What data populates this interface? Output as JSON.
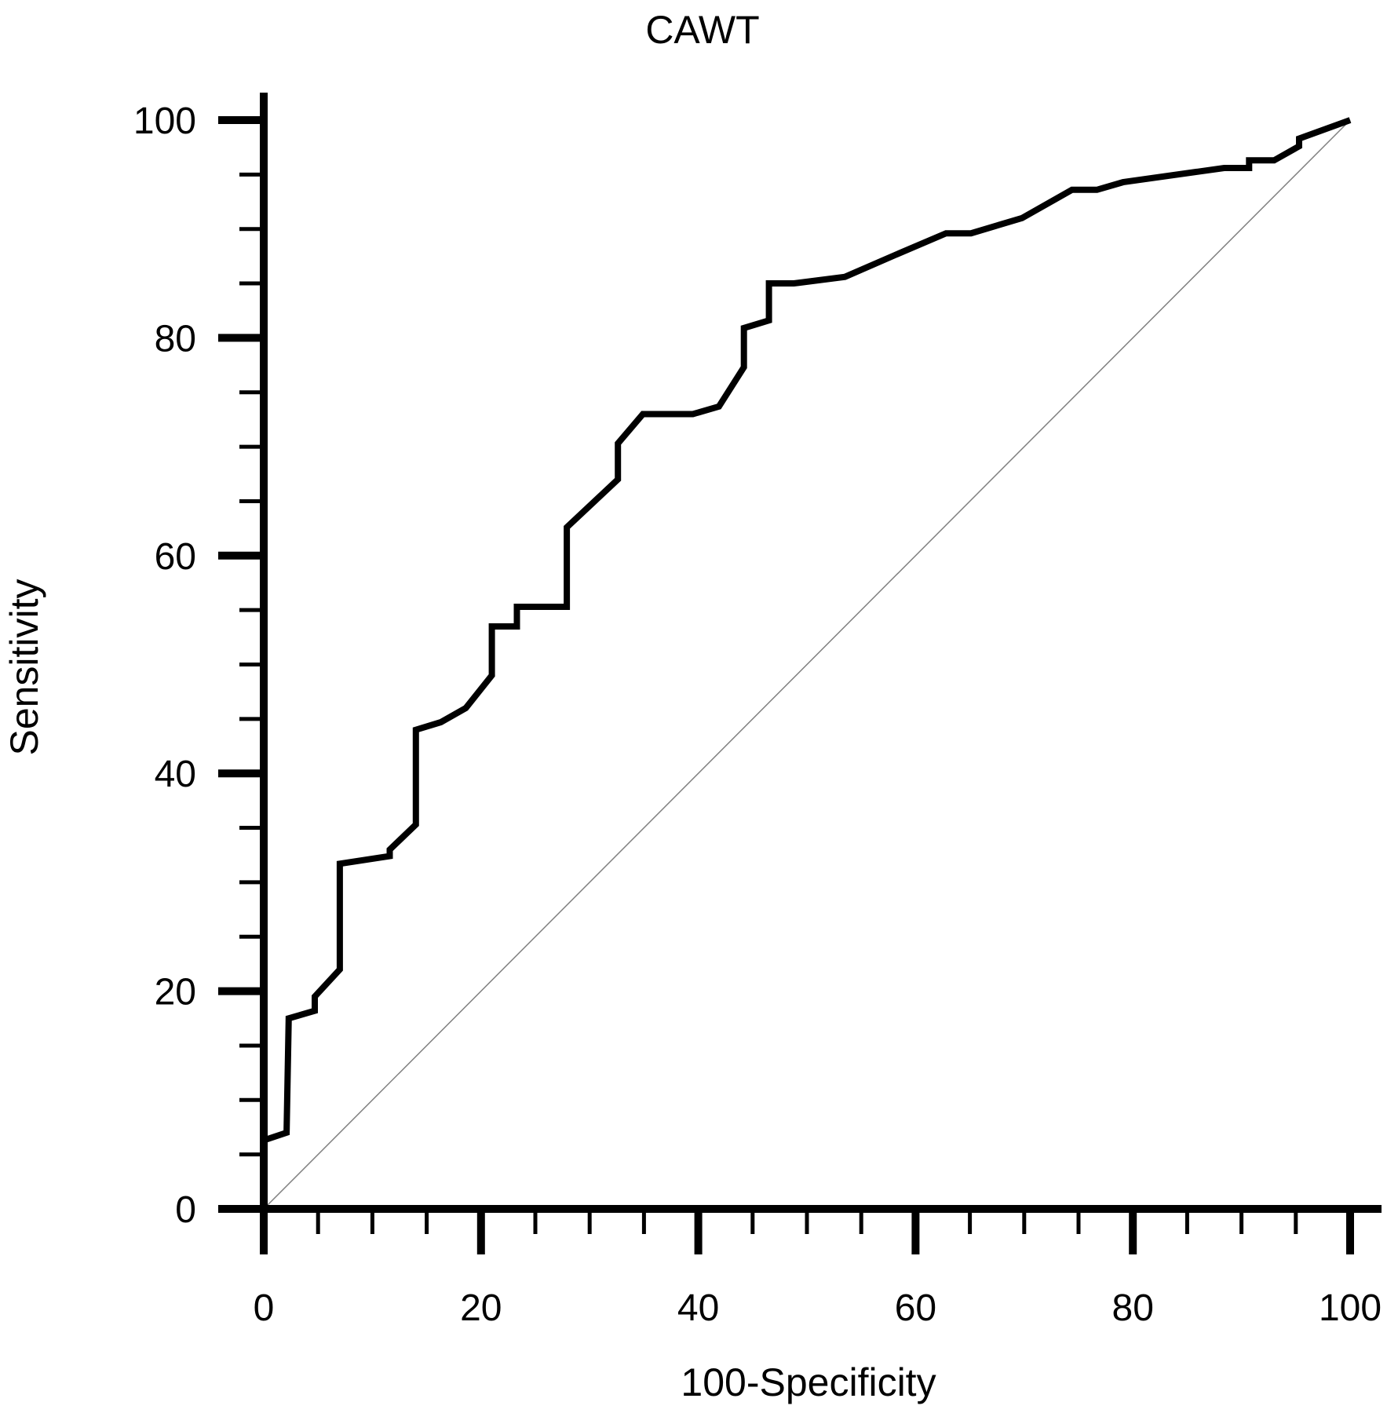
{
  "chart_data": {
    "type": "line",
    "title": "CAWT",
    "xlabel": "100-Specificity",
    "ylabel": "Sensitivity",
    "xlim": [
      0,
      100
    ],
    "ylim": [
      0,
      100
    ],
    "x_ticks": [
      "0",
      "20",
      "40",
      "60",
      "80",
      "100"
    ],
    "y_ticks": [
      "0",
      "20",
      "40",
      "60",
      "80",
      "100"
    ],
    "grid": false,
    "legend": "none",
    "series": [
      {
        "type": "roc-curve",
        "color": "#000000",
        "points": [
          [
            0,
            0
          ],
          [
            0,
            6.3
          ],
          [
            2.1,
            7.0
          ],
          [
            2.3,
            17.5
          ],
          [
            4.7,
            18.2
          ],
          [
            4.7,
            19.5
          ],
          [
            7.0,
            22.0
          ],
          [
            7.0,
            31.7
          ],
          [
            11.6,
            32.4
          ],
          [
            11.6,
            33.0
          ],
          [
            14.0,
            35.3
          ],
          [
            14.0,
            44.0
          ],
          [
            16.3,
            44.7
          ],
          [
            18.6,
            46.0
          ],
          [
            21.0,
            49.0
          ],
          [
            21.0,
            53.5
          ],
          [
            23.3,
            53.5
          ],
          [
            23.3,
            55.3
          ],
          [
            27.9,
            55.3
          ],
          [
            27.9,
            62.6
          ],
          [
            32.6,
            67.0
          ],
          [
            32.6,
            70.3
          ],
          [
            34.9,
            73.0
          ],
          [
            39.5,
            73.0
          ],
          [
            41.9,
            73.7
          ],
          [
            44.2,
            77.3
          ],
          [
            44.2,
            80.9
          ],
          [
            46.5,
            81.6
          ],
          [
            46.5,
            85.0
          ],
          [
            48.8,
            85.0
          ],
          [
            53.5,
            85.6
          ],
          [
            58.1,
            87.6
          ],
          [
            62.8,
            89.6
          ],
          [
            65.1,
            89.6
          ],
          [
            69.8,
            91.0
          ],
          [
            74.4,
            93.6
          ],
          [
            76.7,
            93.6
          ],
          [
            79.1,
            94.3
          ],
          [
            88.4,
            95.6
          ],
          [
            90.7,
            95.6
          ],
          [
            90.7,
            96.3
          ],
          [
            93.0,
            96.3
          ],
          [
            95.3,
            97.6
          ],
          [
            95.3,
            98.3
          ],
          [
            100,
            100
          ]
        ]
      },
      {
        "type": "reference-diagonal",
        "color": "#808080",
        "points": [
          [
            0,
            0
          ],
          [
            100,
            100
          ]
        ]
      }
    ]
  }
}
